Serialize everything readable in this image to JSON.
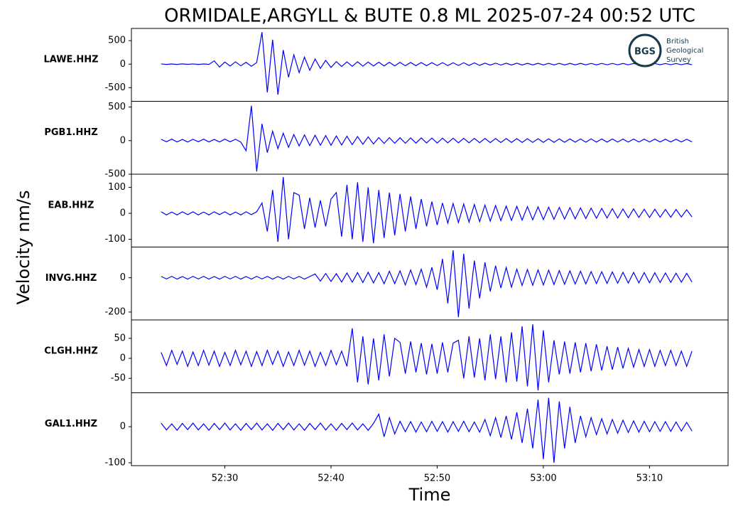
{
  "title": "ORMIDALE,ARGYLL & BUTE 0.8 ML   2025-07-24 00:52 UTC",
  "ylabel": "Velocity nm/s",
  "logo": {
    "abbr": "BGS",
    "lines": [
      "British",
      "Geological",
      "Survey"
    ]
  },
  "time_axis": {
    "label": "Time",
    "xlim": [
      21.2,
      77.4
    ],
    "xticks": [
      {
        "value": 30,
        "label": "52:30"
      },
      {
        "value": 40,
        "label": "52:40"
      },
      {
        "value": 50,
        "label": "52:50"
      },
      {
        "value": 60,
        "label": "53:00"
      },
      {
        "value": 70,
        "label": "53:10"
      }
    ],
    "x": [
      24,
      24.5,
      25,
      25.5,
      26,
      26.5,
      27,
      27.5,
      28,
      28.5,
      29,
      29.5,
      30,
      30.5,
      31,
      31.5,
      32,
      32.5,
      33,
      33.5,
      34,
      34.5,
      35,
      35.5,
      36,
      36.5,
      37,
      37.5,
      38,
      38.5,
      39,
      39.5,
      40,
      40.5,
      41,
      41.5,
      42,
      42.5,
      43,
      43.5,
      44,
      44.5,
      45,
      45.5,
      46,
      46.5,
      47,
      47.5,
      48,
      48.5,
      49,
      49.5,
      50,
      50.5,
      51,
      51.5,
      52,
      52.5,
      53,
      53.5,
      54,
      54.5,
      55,
      55.5,
      56,
      56.5,
      57,
      57.5,
      58,
      58.5,
      59,
      59.5,
      60,
      60.5,
      61,
      61.5,
      62,
      62.5,
      63,
      63.5,
      64,
      64.5,
      65,
      65.5,
      66,
      66.5,
      67,
      67.5,
      68,
      68.5,
      69,
      69.5,
      70,
      70.5,
      71,
      71.5,
      72,
      72.5,
      73,
      73.5,
      74
    ]
  },
  "chart_data": [
    {
      "type": "line",
      "label": "LAWE.HHZ",
      "color": "#0000ff",
      "ylim": [
        -790,
        760
      ],
      "yticks": [
        -500,
        0,
        500
      ],
      "values": [
        5,
        -6,
        4,
        -5,
        6,
        -4,
        5,
        -6,
        4,
        -5,
        70,
        -60,
        45,
        -40,
        50,
        -35,
        40,
        -45,
        35,
        680,
        -600,
        520,
        -650,
        300,
        -280,
        200,
        -180,
        150,
        -130,
        110,
        -90,
        80,
        -70,
        55,
        -50,
        48,
        -45,
        50,
        -42,
        45,
        -40,
        42,
        -38,
        40,
        -36,
        38,
        -35,
        36,
        -33,
        35,
        -32,
        33,
        -30,
        32,
        -30,
        30,
        -28,
        30,
        -27,
        28,
        -26,
        22,
        -20,
        21,
        -19,
        20,
        -18,
        20,
        -18,
        19,
        -17,
        19,
        -17,
        18,
        -16,
        18,
        -16,
        17,
        -15,
        17,
        -15,
        16,
        -15,
        16,
        -14,
        16,
        -14,
        15,
        -14,
        15,
        -13,
        15,
        -13,
        14,
        -13,
        14,
        -12,
        14,
        -12,
        13,
        -12
      ]
    },
    {
      "type": "line",
      "label": "PGB1.HHZ",
      "color": "#0000ff",
      "ylim": [
        -500,
        585
      ],
      "yticks": [
        -500,
        0,
        500
      ],
      "values": [
        20,
        -18,
        22,
        -20,
        18,
        -22,
        20,
        -18,
        22,
        -20,
        18,
        -20,
        22,
        -18,
        20,
        -22,
        -150,
        520,
        -460,
        250,
        -180,
        140,
        -120,
        110,
        -100,
        90,
        -80,
        85,
        -75,
        80,
        -70,
        75,
        -70,
        70,
        -65,
        65,
        -60,
        60,
        -55,
        55,
        -50,
        45,
        -42,
        44,
        -40,
        42,
        -40,
        40,
        -38,
        40,
        -36,
        38,
        -36,
        36,
        -34,
        35,
        -33,
        34,
        -32,
        33,
        -31,
        32,
        -30,
        31,
        -29,
        30,
        -28,
        29,
        -28,
        28,
        -27,
        28,
        -26,
        27,
        -26,
        26,
        -25,
        26,
        -24,
        25,
        -24,
        25,
        -23,
        24,
        -23,
        24,
        -22,
        23,
        -22,
        23,
        -21,
        22,
        -21,
        22,
        -20,
        21,
        -20,
        21,
        -20,
        20,
        -19
      ]
    },
    {
      "type": "line",
      "label": "EAB.HHZ",
      "color": "#0000ff",
      "ylim": [
        -130,
        151
      ],
      "yticks": [
        -100,
        0,
        100
      ],
      "values": [
        6,
        -6,
        5,
        -6,
        6,
        -5,
        6,
        -6,
        5,
        -6,
        6,
        -5,
        6,
        -6,
        5,
        -6,
        6,
        -5,
        6,
        40,
        -70,
        90,
        -110,
        140,
        -100,
        80,
        70,
        -60,
        60,
        -55,
        50,
        -50,
        55,
        80,
        -90,
        110,
        -100,
        120,
        -110,
        100,
        -115,
        90,
        -95,
        80,
        -85,
        75,
        -70,
        65,
        -60,
        55,
        -50,
        45,
        -45,
        40,
        -38,
        38,
        -36,
        36,
        -34,
        34,
        -32,
        32,
        -30,
        30,
        -28,
        28,
        -27,
        27,
        -26,
        26,
        -25,
        25,
        -24,
        24,
        -23,
        23,
        -22,
        22,
        -21,
        21,
        -20,
        20,
        -19,
        19,
        -18,
        18,
        -18,
        17,
        -17,
        17,
        -16,
        16,
        -16,
        16,
        -15,
        15,
        -15,
        15,
        -14,
        14,
        -14
      ]
    },
    {
      "type": "line",
      "label": "INVG.HHZ",
      "color": "#0000ff",
      "ylim": [
        -246,
        179
      ],
      "yticks": [
        -200,
        0
      ],
      "values": [
        8,
        -7,
        8,
        -8,
        7,
        -8,
        8,
        -7,
        8,
        -8,
        7,
        -8,
        8,
        -7,
        8,
        -8,
        7,
        -8,
        8,
        -7,
        8,
        -8,
        7,
        -8,
        8,
        -7,
        8,
        -8,
        7,
        22,
        -20,
        25,
        -22,
        24,
        -25,
        28,
        -26,
        30,
        -28,
        32,
        -30,
        30,
        -35,
        38,
        -35,
        40,
        -42,
        45,
        -40,
        50,
        -55,
        60,
        -70,
        110,
        -150,
        160,
        -230,
        140,
        -180,
        100,
        -120,
        90,
        -80,
        70,
        -60,
        60,
        -55,
        50,
        -45,
        48,
        -44,
        46,
        -42,
        44,
        -40,
        42,
        -38,
        40,
        -37,
        38,
        -36,
        36,
        -34,
        35,
        -33,
        34,
        -32,
        32,
        -31,
        31,
        -30,
        30,
        -29,
        29,
        -28,
        28,
        -27,
        27,
        -26,
        26,
        -25
      ]
    },
    {
      "type": "line",
      "label": "CLGH.HHZ",
      "color": "#0000ff",
      "ylim": [
        -86,
        96
      ],
      "yticks": [
        -50,
        0,
        50
      ],
      "values": [
        15,
        -18,
        20,
        -15,
        18,
        -20,
        16,
        -18,
        20,
        -17,
        18,
        -20,
        15,
        -18,
        20,
        -16,
        18,
        -20,
        17,
        -18,
        20,
        -15,
        18,
        -20,
        16,
        -18,
        20,
        -17,
        18,
        -20,
        15,
        -18,
        20,
        -16,
        18,
        -20,
        75,
        -60,
        55,
        -65,
        50,
        -55,
        60,
        -45,
        50,
        40,
        -38,
        42,
        -35,
        38,
        -40,
        36,
        -38,
        40,
        -35,
        38,
        45,
        -50,
        55,
        -48,
        50,
        -55,
        60,
        -52,
        55,
        -60,
        65,
        -58,
        80,
        -70,
        85,
        -80,
        70,
        -60,
        45,
        -40,
        42,
        -38,
        40,
        -35,
        38,
        -32,
        35,
        -30,
        30,
        -28,
        28,
        -25,
        25,
        -22,
        22,
        -20,
        22,
        -20,
        20,
        -18,
        20,
        -18,
        18,
        -20,
        18
      ]
    },
    {
      "type": "line",
      "label": "GAL1.HHZ",
      "color": "#0000ff",
      "ylim": [
        -108,
        94
      ],
      "yticks": [
        -100,
        0
      ],
      "values": [
        10,
        -9,
        8,
        -10,
        9,
        -8,
        10,
        -9,
        8,
        -10,
        9,
        -8,
        10,
        -9,
        8,
        -10,
        9,
        -8,
        10,
        -9,
        8,
        -10,
        9,
        -8,
        10,
        -9,
        8,
        -10,
        9,
        -8,
        10,
        -9,
        8,
        -10,
        9,
        -8,
        10,
        -9,
        8,
        -10,
        9,
        35,
        -28,
        25,
        -20,
        15,
        -14,
        14,
        -15,
        13,
        -14,
        15,
        -13,
        14,
        -15,
        14,
        -13,
        15,
        -14,
        13,
        -15,
        20,
        -25,
        25,
        -30,
        30,
        -35,
        40,
        -45,
        50,
        -60,
        75,
        -90,
        80,
        -100,
        70,
        -60,
        55,
        -45,
        30,
        -28,
        25,
        -22,
        22,
        -20,
        20,
        -18,
        18,
        -16,
        16,
        -15,
        15,
        -14,
        14,
        -13,
        14,
        -13,
        13,
        -12,
        12,
        -12
      ]
    }
  ]
}
